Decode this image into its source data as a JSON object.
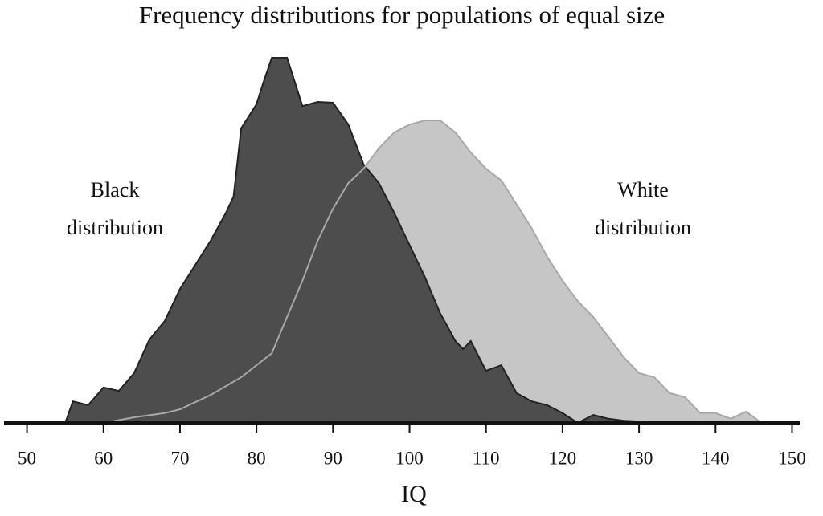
{
  "chart_data": {
    "type": "area",
    "title": "Frequency distributions for populations of equal size",
    "x_label": "IQ",
    "xlim": [
      47,
      151
    ],
    "xticks": [
      50,
      60,
      70,
      80,
      90,
      100,
      110,
      120,
      130,
      140,
      150
    ],
    "ylim": [
      0,
      100
    ],
    "series": [
      {
        "name": "White distribution",
        "color": "#c6c6c6",
        "x": [
          60,
          64,
          68,
          70,
          74,
          78,
          80,
          82,
          84,
          86,
          88,
          90,
          92,
          94,
          96,
          98,
          100,
          102,
          104,
          106,
          108,
          110,
          112,
          114,
          116,
          118,
          120,
          122,
          124,
          126,
          128,
          130,
          132,
          134,
          136,
          138,
          140,
          142,
          144,
          146
        ],
        "values": [
          0,
          1.5,
          2.6,
          3.6,
          7.4,
          12.1,
          15.3,
          18.5,
          28.1,
          37.7,
          48.3,
          56.8,
          63.6,
          67.4,
          72.8,
          77,
          79.1,
          80.2,
          80.2,
          77,
          71.7,
          67.4,
          64.3,
          57.9,
          51.5,
          44,
          37.7,
          32.3,
          28.1,
          22.8,
          17.4,
          13.2,
          12.1,
          7.9,
          6.8,
          2.6,
          2.6,
          1.1,
          3,
          0
        ]
      },
      {
        "name": "Black distribution",
        "color": "#4d4d4d",
        "x": [
          55,
          56,
          58,
          60,
          62,
          64,
          66,
          68,
          70,
          72,
          74,
          76,
          77,
          78,
          80,
          81,
          82,
          84,
          86,
          88,
          90,
          92,
          94,
          96,
          98,
          100,
          102,
          104,
          106,
          107,
          108,
          110,
          112,
          114,
          116,
          118,
          120,
          122,
          124,
          126,
          128,
          130,
          132
        ],
        "values": [
          0,
          5.7,
          4.7,
          9.4,
          8.5,
          13.2,
          22.1,
          27,
          35.5,
          41.9,
          48.3,
          55.7,
          60,
          78.1,
          84.5,
          90.9,
          96.8,
          96.8,
          84,
          85.1,
          84.9,
          79.1,
          68.5,
          63.6,
          55.7,
          47.2,
          38.7,
          29.1,
          21.7,
          19.6,
          21.7,
          13.8,
          15.3,
          7.9,
          5.7,
          4.7,
          2.6,
          0,
          2.1,
          1.1,
          0.6,
          0.4,
          0
        ]
      }
    ]
  }
}
